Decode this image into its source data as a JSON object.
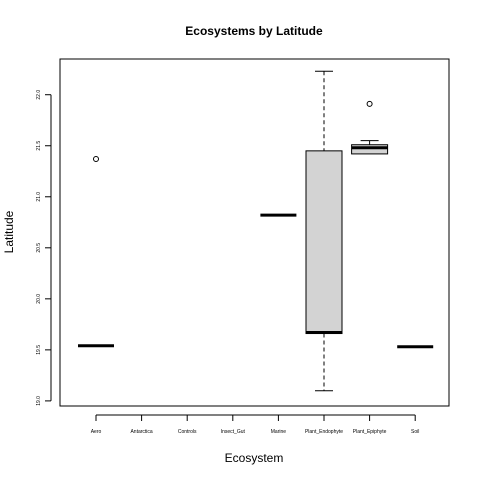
{
  "chart_data": {
    "type": "box",
    "title": "Ecosystems by Latitude",
    "xlabel": "Ecosystem",
    "ylabel": "Latitude",
    "ylim": [
      18.95,
      22.35
    ],
    "yticks": [
      19.0,
      19.5,
      20.0,
      20.5,
      21.0,
      21.5,
      22.0
    ],
    "ytick_labels": [
      "19.0",
      "19.5",
      "20.0",
      "20.5",
      "21.0",
      "21.5",
      "22.0"
    ],
    "categories": [
      "Aero",
      "Antarctica",
      "Controls",
      "Insect_Gut",
      "Marine",
      "Plant_Endophyte",
      "Plant_Epiphyte",
      "Soil"
    ],
    "boxes": [
      {
        "category": "Aero",
        "min": 19.54,
        "q1": 19.54,
        "median": 19.54,
        "q3": 19.54,
        "max": 19.54,
        "outliers": [
          21.37
        ]
      },
      {
        "category": "Antarctica",
        "min": null,
        "q1": null,
        "median": null,
        "q3": null,
        "max": null,
        "outliers": []
      },
      {
        "category": "Controls",
        "min": null,
        "q1": null,
        "median": null,
        "q3": null,
        "max": null,
        "outliers": []
      },
      {
        "category": "Insect_Gut",
        "min": null,
        "q1": null,
        "median": null,
        "q3": null,
        "max": null,
        "outliers": []
      },
      {
        "category": "Marine",
        "min": 20.82,
        "q1": 20.82,
        "median": 20.82,
        "q3": 20.82,
        "max": 20.82,
        "outliers": []
      },
      {
        "category": "Plant_Endophyte",
        "min": 19.1,
        "q1": 19.66,
        "median": 19.67,
        "q3": 21.45,
        "max": 22.23,
        "outliers": []
      },
      {
        "category": "Plant_Epiphyte",
        "min": 21.42,
        "q1": 21.42,
        "median": 21.48,
        "q3": 21.51,
        "max": 21.55,
        "outliers": [
          21.91
        ]
      },
      {
        "category": "Soil",
        "min": 19.53,
        "q1": 19.53,
        "median": 19.53,
        "q3": 19.53,
        "max": 19.53,
        "outliers": []
      }
    ],
    "box_fill": "#d3d3d3",
    "grid": false,
    "legend": "none"
  }
}
